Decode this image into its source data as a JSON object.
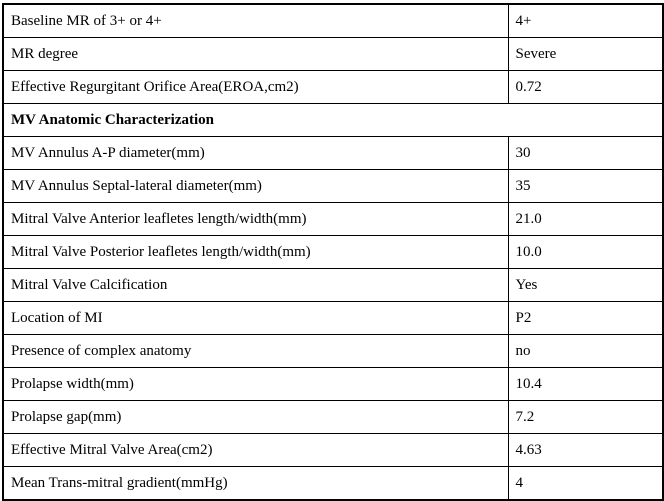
{
  "table": {
    "rows": [
      {
        "label": "Baseline MR of 3+ or 4+",
        "value": "4+"
      },
      {
        "label": "MR degree",
        "value": "Severe"
      },
      {
        "label": "Effective Regurgitant Orifice Area(EROA,cm2)",
        "value": "0.72"
      },
      {
        "label": "MV Anatomic Characterization",
        "value": "",
        "section": true
      },
      {
        "label": "MV Annulus A-P diameter(mm)",
        "value": "30"
      },
      {
        "label": "MV Annulus Septal-lateral diameter(mm)",
        "value": "35"
      },
      {
        "label": "Mitral Valve Anterior leafletes length/width(mm)",
        "value": "21.0"
      },
      {
        "label": "Mitral Valve Posterior leafletes length/width(mm)",
        "value": "10.0"
      },
      {
        "label": "Mitral Valve Calcification",
        "value": "Yes"
      },
      {
        "label": "Location of MI",
        "value": "P2"
      },
      {
        "label": "Presence of complex anatomy",
        "value": "no"
      },
      {
        "label": "Prolapse width(mm)",
        "value": "10.4"
      },
      {
        "label": "Prolapse gap(mm)",
        "value": "7.2"
      },
      {
        "label": "Effective Mitral Valve Area(cm2)",
        "value": "4.63"
      },
      {
        "label": "Mean Trans-mitral gradient(mmHg)",
        "value": "4"
      }
    ],
    "colors": {
      "border": "#000000",
      "text": "#000000",
      "background": "#ffffff"
    }
  }
}
